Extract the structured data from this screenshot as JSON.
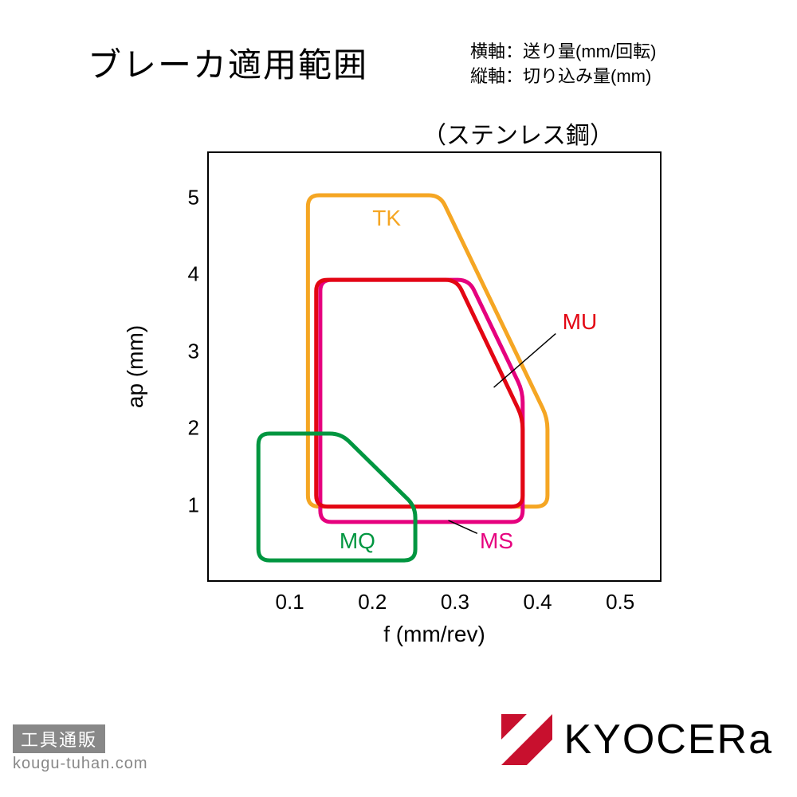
{
  "title": "ブレーカ適用範囲",
  "axis_note_line1": "横軸：送り量(mm/回転)",
  "axis_note_line2": "縦軸：切り込み量(mm)",
  "subtitle": "（ステンレス鋼）",
  "chart": {
    "type": "region-outline",
    "xlabel": "f (mm/rev)",
    "ylabel": "ap (mm)",
    "xlim": [
      0,
      0.55
    ],
    "ylim": [
      0,
      5.6
    ],
    "xticks": [
      0.1,
      0.2,
      0.3,
      0.4,
      0.5
    ],
    "yticks": [
      1,
      2,
      3,
      4,
      5
    ],
    "xtick_labels": [
      "0.1",
      "0.2",
      "0.3",
      "0.4",
      "0.5"
    ],
    "ytick_labels": [
      "1",
      "2",
      "3",
      "4",
      "5"
    ],
    "border_color": "#000000",
    "background_color": "#ffffff",
    "stroke_width": 5,
    "corner_radius": 14,
    "regions": {
      "TK": {
        "label": "TK",
        "color": "#f5a623",
        "points": [
          [
            0.12,
            1.0
          ],
          [
            0.12,
            5.05
          ],
          [
            0.28,
            5.05
          ],
          [
            0.41,
            2.15
          ],
          [
            0.41,
            1.0
          ]
        ],
        "label_pos_f": 0.2,
        "label_pos_ap": 4.75
      },
      "MU": {
        "label": "MU",
        "color": "#e30613",
        "points": [
          [
            0.13,
            1.0
          ],
          [
            0.13,
            3.95
          ],
          [
            0.3,
            3.95
          ],
          [
            0.38,
            2.15
          ],
          [
            0.38,
            1.0
          ]
        ],
        "label_pos_f": 0.43,
        "label_pos_ap": 3.4,
        "leader_from_f": 0.42,
        "leader_from_ap": 3.25,
        "leader_to_f": 0.345,
        "leader_to_ap": 2.55
      },
      "MS": {
        "label": "MS",
        "color": "#e6007e",
        "points": [
          [
            0.135,
            0.8
          ],
          [
            0.135,
            3.95
          ],
          [
            0.315,
            3.95
          ],
          [
            0.38,
            2.5
          ],
          [
            0.38,
            0.8
          ]
        ],
        "label_pos_f": 0.33,
        "label_pos_ap": 0.55,
        "leader_from_f": 0.325,
        "leader_from_ap": 0.65,
        "leader_to_f": 0.29,
        "leader_to_ap": 0.82
      },
      "MQ": {
        "label": "MQ",
        "color": "#009640",
        "points": [
          [
            0.06,
            0.3
          ],
          [
            0.06,
            1.95
          ],
          [
            0.16,
            1.95
          ],
          [
            0.25,
            1.0
          ],
          [
            0.25,
            0.3
          ]
        ],
        "label_pos_f": 0.16,
        "label_pos_ap": 0.55
      }
    },
    "label_fontsize": 28,
    "tick_fontsize": 26,
    "axis_label_fontsize": 28
  },
  "footer": {
    "badge": "工具通販",
    "url": "kougu-tuhan.com",
    "badge_bg": "#888888",
    "url_color": "#888888"
  },
  "logo": {
    "text": "KYOCERa",
    "icon_color": "#c8102e",
    "text_color": "#000000"
  }
}
